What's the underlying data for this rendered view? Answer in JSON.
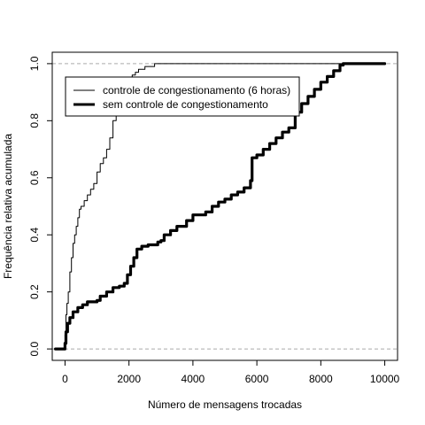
{
  "chart_data": {
    "type": "line",
    "title": "",
    "xlabel": "Número de mensagens trocadas",
    "ylabel": "Frequência relativa acumulada",
    "xlim": [
      -400,
      10400
    ],
    "ylim": [
      -0.04,
      1.04
    ],
    "xticks": [
      0,
      2000,
      4000,
      6000,
      8000,
      10000
    ],
    "yticks": [
      0.0,
      0.2,
      0.4,
      0.6,
      0.8,
      1.0
    ],
    "xtick_labels": [
      "0",
      "2000",
      "4000",
      "6000",
      "8000",
      "10000"
    ],
    "ytick_labels": [
      "0.0",
      "0.2",
      "0.4",
      "0.6",
      "0.8",
      "1.0"
    ],
    "reference_lines": [
      0.0,
      1.0
    ],
    "legend": {
      "placement": "top-left"
    },
    "series": [
      {
        "name": "controle de congestionamento (6 horas)",
        "color": "#000000",
        "style": "thin",
        "points": [
          [
            -300,
            0
          ],
          [
            0,
            0
          ],
          [
            0,
            0.05
          ],
          [
            30,
            0.12
          ],
          [
            60,
            0.16
          ],
          [
            100,
            0.2
          ],
          [
            150,
            0.27
          ],
          [
            200,
            0.32
          ],
          [
            250,
            0.37
          ],
          [
            300,
            0.4
          ],
          [
            350,
            0.43
          ],
          [
            400,
            0.46
          ],
          [
            450,
            0.49
          ],
          [
            500,
            0.5
          ],
          [
            600,
            0.52
          ],
          [
            700,
            0.54
          ],
          [
            800,
            0.56
          ],
          [
            900,
            0.58
          ],
          [
            1000,
            0.62
          ],
          [
            1100,
            0.65
          ],
          [
            1200,
            0.67
          ],
          [
            1300,
            0.7
          ],
          [
            1400,
            0.74
          ],
          [
            1500,
            0.8
          ],
          [
            1600,
            0.85
          ],
          [
            1700,
            0.88
          ],
          [
            1800,
            0.91
          ],
          [
            1900,
            0.93
          ],
          [
            2000,
            0.95
          ],
          [
            2100,
            0.96
          ],
          [
            2200,
            0.97
          ],
          [
            2300,
            0.98
          ],
          [
            2500,
            0.99
          ],
          [
            2800,
            1.0
          ],
          [
            9300,
            1.0
          ]
        ]
      },
      {
        "name": "sem controle de congestionamento",
        "color": "#000000",
        "style": "thick",
        "points": [
          [
            -300,
            0
          ],
          [
            0,
            0
          ],
          [
            0,
            0.02
          ],
          [
            30,
            0.06
          ],
          [
            80,
            0.09
          ],
          [
            150,
            0.11
          ],
          [
            250,
            0.13
          ],
          [
            400,
            0.145
          ],
          [
            550,
            0.155
          ],
          [
            700,
            0.165
          ],
          [
            1000,
            0.17
          ],
          [
            1100,
            0.185
          ],
          [
            1300,
            0.2
          ],
          [
            1500,
            0.215
          ],
          [
            1700,
            0.22
          ],
          [
            1850,
            0.23
          ],
          [
            1950,
            0.26
          ],
          [
            2050,
            0.29
          ],
          [
            2150,
            0.32
          ],
          [
            2250,
            0.35
          ],
          [
            2400,
            0.36
          ],
          [
            2600,
            0.365
          ],
          [
            2900,
            0.375
          ],
          [
            3000,
            0.38
          ],
          [
            3100,
            0.4
          ],
          [
            3300,
            0.415
          ],
          [
            3500,
            0.43
          ],
          [
            3800,
            0.45
          ],
          [
            4000,
            0.47
          ],
          [
            4400,
            0.48
          ],
          [
            4600,
            0.5
          ],
          [
            4800,
            0.515
          ],
          [
            5000,
            0.525
          ],
          [
            5200,
            0.54
          ],
          [
            5400,
            0.55
          ],
          [
            5600,
            0.565
          ],
          [
            5800,
            0.59
          ],
          [
            5850,
            0.67
          ],
          [
            6000,
            0.68
          ],
          [
            6200,
            0.7
          ],
          [
            6400,
            0.72
          ],
          [
            6600,
            0.74
          ],
          [
            6800,
            0.76
          ],
          [
            7000,
            0.775
          ],
          [
            7200,
            0.83
          ],
          [
            7400,
            0.86
          ],
          [
            7600,
            0.885
          ],
          [
            7800,
            0.91
          ],
          [
            8000,
            0.935
          ],
          [
            8200,
            0.955
          ],
          [
            8400,
            0.975
          ],
          [
            8600,
            0.995
          ],
          [
            8700,
            1.0
          ],
          [
            10000,
            1.0
          ]
        ]
      }
    ]
  }
}
